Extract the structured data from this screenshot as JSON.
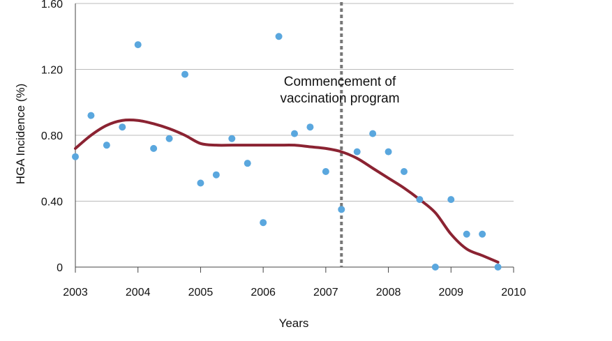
{
  "chart_data": {
    "type": "scatter",
    "title": "",
    "xlabel": "Years",
    "ylabel": "HGA Incidence (%)",
    "xlim": [
      2003,
      2010
    ],
    "ylim": [
      0,
      1.6
    ],
    "x_ticks": [
      "2003",
      "2004",
      "2005",
      "2006",
      "2007",
      "2008",
      "2009",
      "2010"
    ],
    "y_ticks": [
      "0",
      "0.40",
      "0.80",
      "1.20",
      "1.60"
    ],
    "grid": "horizontal",
    "colors": {
      "points": "#5aa7de",
      "trend": "#8b2332",
      "marker_line": "#777777",
      "grid": "#bbbbbb"
    },
    "series": [
      {
        "type": "scatter",
        "x": [
          2003.0,
          2003.25,
          2003.5,
          2003.75,
          2004.0,
          2004.25,
          2004.5,
          2004.75,
          2005.0,
          2005.25,
          2005.5,
          2005.75,
          2006.0,
          2006.25,
          2006.5,
          2006.75,
          2007.0,
          2007.25,
          2007.5,
          2007.75,
          2008.0,
          2008.25,
          2008.5,
          2008.75,
          2009.0,
          2009.25,
          2009.5,
          2009.75
        ],
        "y": [
          0.67,
          0.92,
          0.74,
          0.85,
          1.35,
          0.72,
          0.78,
          1.17,
          0.51,
          0.56,
          0.78,
          0.63,
          0.27,
          1.4,
          0.81,
          0.85,
          0.58,
          0.35,
          0.7,
          0.81,
          0.7,
          0.58,
          0.41,
          0.0,
          0.41,
          0.2,
          0.2,
          0.0
        ]
      },
      {
        "type": "line",
        "x": [
          2003.0,
          2003.25,
          2003.5,
          2003.75,
          2004.0,
          2004.25,
          2004.5,
          2004.75,
          2005.0,
          2005.25,
          2005.5,
          2005.75,
          2006.0,
          2006.25,
          2006.5,
          2006.75,
          2007.0,
          2007.25,
          2007.5,
          2007.75,
          2008.0,
          2008.25,
          2008.5,
          2008.75,
          2009.0,
          2009.25,
          2009.5,
          2009.75
        ],
        "y": [
          0.72,
          0.8,
          0.86,
          0.89,
          0.89,
          0.87,
          0.84,
          0.8,
          0.75,
          0.74,
          0.74,
          0.74,
          0.74,
          0.74,
          0.74,
          0.73,
          0.72,
          0.7,
          0.66,
          0.6,
          0.54,
          0.48,
          0.41,
          0.33,
          0.2,
          0.11,
          0.07,
          0.03
        ]
      }
    ],
    "vline": {
      "x": 2007.25
    },
    "annotation": {
      "line1": "Commencement of",
      "line2": "vaccination program"
    }
  }
}
